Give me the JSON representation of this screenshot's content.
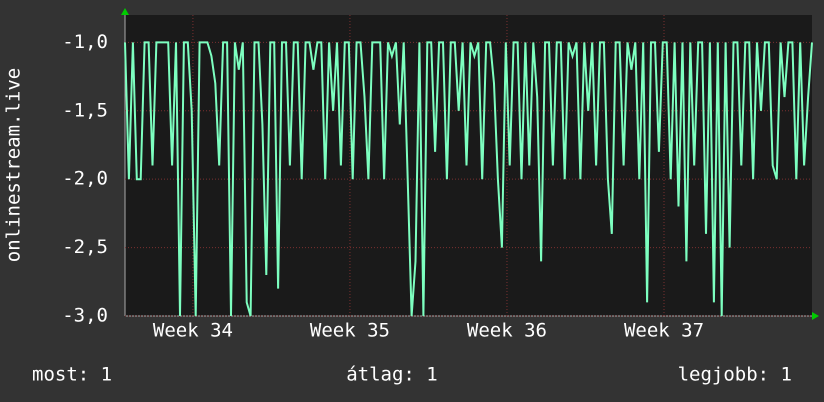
{
  "chart_data": {
    "type": "line",
    "y_label": "onlinestream.live",
    "color": "#7dffc0",
    "values": [
      -1,
      -2,
      -1,
      -2,
      -2,
      -1,
      -1,
      -1.9,
      -1,
      -1,
      -1,
      -1,
      -1.9,
      -1,
      -3,
      -1,
      -1,
      -1.5,
      -3,
      -1,
      -1,
      -1,
      -1.1,
      -1.3,
      -1.9,
      -1,
      -1,
      -3,
      -1,
      -1.2,
      -1,
      -2.9,
      -3,
      -1,
      -1,
      -1.6,
      -2.7,
      -1,
      -1,
      -2.8,
      -1,
      -1,
      -1.9,
      -1,
      -1,
      -2,
      -1,
      -1,
      -1.2,
      -1,
      -1,
      -2,
      -1,
      -1.5,
      -1,
      -1.9,
      -1,
      -1,
      -2,
      -1,
      -1,
      -1.4,
      -2,
      -1,
      -1,
      -1,
      -2,
      -1,
      -1.1,
      -1,
      -1.6,
      -1,
      -2,
      -3,
      -2.6,
      -1,
      -3,
      -1,
      -1,
      -1.8,
      -1,
      -1,
      -2,
      -1,
      -1,
      -1.5,
      -1,
      -1.9,
      -1,
      -1.1,
      -1,
      -2,
      -1,
      -1,
      -1.3,
      -2,
      -2.5,
      -1,
      -1.9,
      -1,
      -1,
      -2,
      -1,
      -1.9,
      -1,
      -1.4,
      -2.6,
      -1,
      -1,
      -1.9,
      -1,
      -1,
      -2,
      -1,
      -1.1,
      -1,
      -2,
      -1,
      -1.5,
      -1,
      -1.9,
      -1,
      -1,
      -2,
      -2.4,
      -1,
      -1,
      -1.9,
      -1,
      -1.2,
      -1,
      -2,
      -1,
      -2.9,
      -1,
      -1,
      -1.8,
      -1,
      -1,
      -2,
      -1,
      -2.2,
      -1,
      -2.6,
      -1,
      -1.9,
      -1,
      -1,
      -2.4,
      -1,
      -2.9,
      -1,
      -3,
      -1,
      -2.5,
      -1,
      -1,
      -1.9,
      -1,
      -1,
      -2,
      -1,
      -1.5,
      -1,
      -1,
      -1.9,
      -2,
      -1,
      -1.4,
      -1,
      -1,
      -2,
      -1,
      -1.9,
      -1.4,
      -1
    ],
    "xlim": [
      0,
      175
    ],
    "xticks": [
      {
        "value": 17.3,
        "label": "Week 34"
      },
      {
        "value": 57.3,
        "label": "Week 35"
      },
      {
        "value": 97.3,
        "label": "Week 36"
      },
      {
        "value": 137.3,
        "label": "Week 37"
      }
    ],
    "ylim": [
      -3,
      -0.8
    ],
    "yticks": [
      {
        "value": -3,
        "label": "-3,0"
      },
      {
        "value": -2.5,
        "label": "-2,5"
      },
      {
        "value": -2,
        "label": "-2,0"
      },
      {
        "value": -1.5,
        "label": "-1,5"
      },
      {
        "value": -1,
        "label": "-1,0"
      }
    ],
    "grid": true,
    "footer": [
      "most: 1",
      "átlag: 1",
      "legjobb: 1"
    ]
  }
}
